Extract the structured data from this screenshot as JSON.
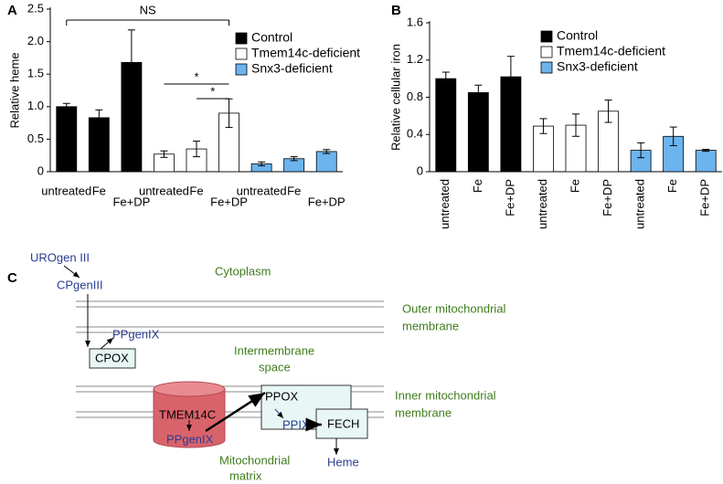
{
  "chart_data": [
    {
      "type": "bar",
      "panel": "A",
      "ylabel": "Relative heme",
      "categories": [
        "untreated",
        "Fe",
        "Fe+DP",
        "untreated",
        "Fe",
        "Fe+DP",
        "untreated",
        "Fe",
        "Fe+DP"
      ],
      "series": [
        {
          "name": "Control",
          "color": "#000000",
          "values": [
            1.0,
            0.83,
            1.68,
            null,
            null,
            null,
            null,
            null,
            null
          ],
          "errors": [
            0.05,
            0.12,
            0.5,
            null,
            null,
            null,
            null,
            null,
            null
          ]
        },
        {
          "name": "Tmem14c-deficient",
          "color": "#ffffff",
          "values": [
            null,
            null,
            null,
            0.27,
            0.35,
            0.9,
            null,
            null,
            null
          ],
          "errors": [
            null,
            null,
            null,
            0.05,
            0.12,
            0.22,
            null,
            null,
            null
          ]
        },
        {
          "name": "Snx3-deficient",
          "color": "#6cb4ee",
          "values": [
            null,
            null,
            null,
            null,
            null,
            null,
            0.12,
            0.2,
            0.31
          ],
          "errors": [
            null,
            null,
            null,
            null,
            null,
            null,
            0.03,
            0.03,
            0.03
          ]
        }
      ],
      "ylim": [
        0,
        2.5
      ],
      "yticks": [
        0,
        0.5,
        {
          "value": 1,
          "label": "1.0"
        },
        1.5,
        {
          "value": 2,
          "label": "2.0"
        },
        2.5
      ],
      "annotations": [
        "NS",
        "*",
        "*"
      ]
    },
    {
      "type": "bar",
      "panel": "B",
      "ylabel": "Relative cellular iron",
      "categories": [
        "untreated",
        "Fe",
        "Fe+DP",
        "untreated",
        "Fe",
        "Fe+DP",
        "untreated",
        "Fe",
        "Fe+DP"
      ],
      "series": [
        {
          "name": "Control",
          "color": "#000000",
          "values": [
            1.0,
            0.85,
            1.02,
            null,
            null,
            null,
            null,
            null,
            null
          ],
          "errors": [
            0.07,
            0.08,
            0.22,
            null,
            null,
            null,
            null,
            null,
            null
          ]
        },
        {
          "name": "Tmem14c-deficient",
          "color": "#ffffff",
          "values": [
            null,
            null,
            null,
            0.49,
            0.5,
            0.65,
            null,
            null,
            null
          ],
          "errors": [
            null,
            null,
            null,
            0.08,
            0.12,
            0.12,
            null,
            null,
            null
          ]
        },
        {
          "name": "Snx3-deficient",
          "color": "#6cb4ee",
          "values": [
            null,
            null,
            null,
            null,
            null,
            null,
            0.23,
            0.38,
            0.23
          ],
          "errors": [
            null,
            null,
            null,
            null,
            null,
            null,
            0.08,
            0.1,
            0.01
          ]
        }
      ],
      "ylim": [
        0,
        1.6
      ],
      "yticks": [
        0,
        0.4,
        0.8,
        1.2,
        1.6
      ]
    }
  ],
  "diagram": {
    "panel": "C",
    "labels": [
      "UROgen III",
      "CPgenIII",
      "Cytoplasm",
      "Outer mitochondrial",
      "membrane",
      "Intermembrane",
      "space",
      "PPgenIX",
      "CPOX",
      "TMEM14C",
      "PPOX",
      "PPIX",
      "FECH",
      "Inner mitochondrial",
      "membrane",
      "PPgenIX",
      "Mitochondrial",
      "matrix",
      "Heme"
    ]
  }
}
